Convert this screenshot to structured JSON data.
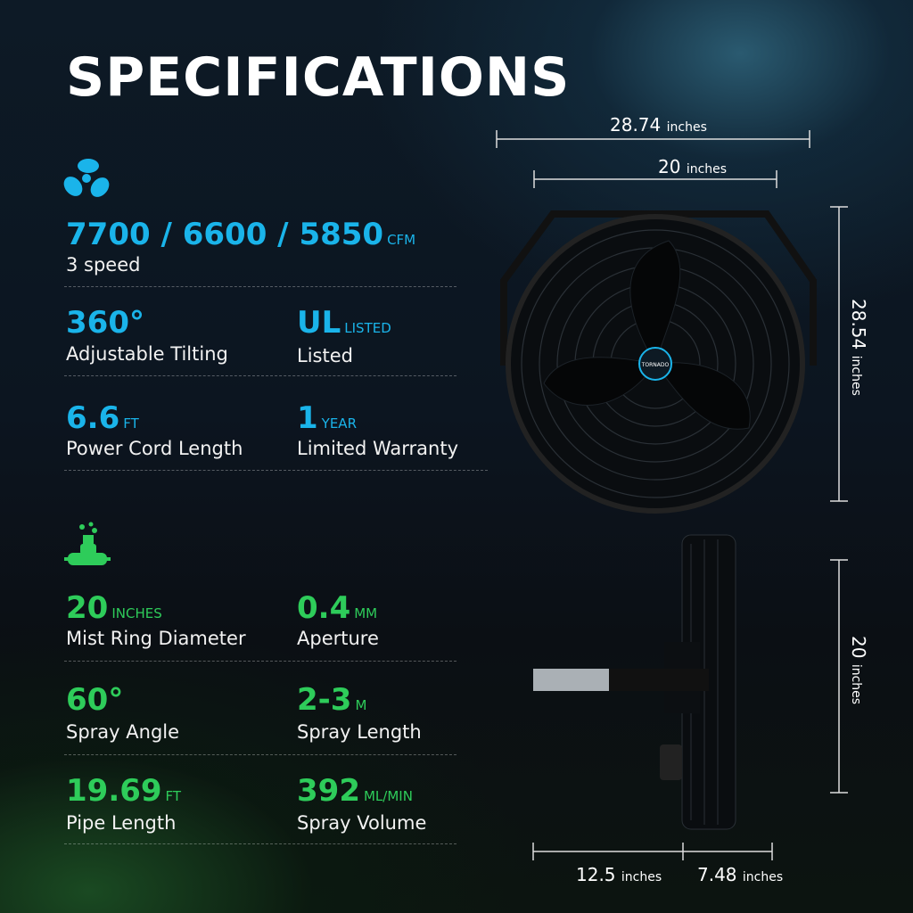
{
  "title": "SPECIFICATIONS",
  "colors": {
    "blue": "#1ab4ea",
    "green": "#2ecc5a"
  },
  "fan_section": {
    "icon": "fan-icon",
    "airflow": {
      "value": "7700 / 6600 / 5850",
      "unit": "CFM",
      "label": "3 speed"
    },
    "tilt": {
      "value": "360°",
      "label": "Adjustable Tilting"
    },
    "ul": {
      "value": "UL",
      "unit": "LISTED",
      "label": "Listed"
    },
    "cord": {
      "value": "6.6",
      "unit": "FT",
      "label": "Power Cord Length"
    },
    "warranty": {
      "value": "1",
      "unit": "YEAR",
      "label": "Limited Warranty"
    }
  },
  "mist_section": {
    "icon": "mist-nozzle-icon",
    "ring": {
      "value": "20",
      "unit": "INCHES",
      "label": "Mist Ring Diameter"
    },
    "aperture": {
      "value": "0.4",
      "unit": "MM",
      "label": "Aperture"
    },
    "angle": {
      "value": "60°",
      "label": "Spray Angle"
    },
    "length": {
      "value": "2-3",
      "unit": "M",
      "label": "Spray Length"
    },
    "pipe": {
      "value": "19.69",
      "unit": "FT",
      "label": "Pipe Length"
    },
    "volume": {
      "value": "392",
      "unit": "ML/MIN",
      "label": "Spray Volume"
    }
  },
  "dimensions": {
    "unit": "inches",
    "overall_width": "28.74",
    "grill_width": "20",
    "height": "28.54",
    "side_height": "20",
    "bracket_depth": "12.5",
    "fan_depth": "7.48"
  },
  "brand_logo": "TORNADO"
}
